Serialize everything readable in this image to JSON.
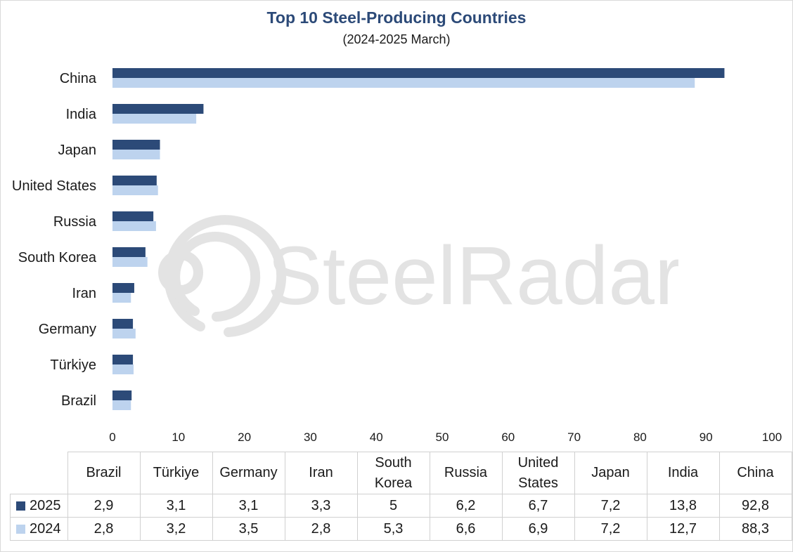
{
  "chart_data": {
    "type": "bar",
    "orientation": "horizontal",
    "title": "Top 10 Steel-Producing Countries",
    "subtitle": "(2024-2025 March)",
    "categories": [
      "China",
      "India",
      "Japan",
      "United States",
      "Russia",
      "South Korea",
      "Iran",
      "Germany",
      "Türkiye",
      "Brazil"
    ],
    "series": [
      {
        "name": "2025",
        "color": "#2c4a78",
        "values": [
          92.8,
          13.8,
          7.2,
          6.7,
          6.2,
          5,
          3.3,
          3.1,
          3.1,
          2.9
        ]
      },
      {
        "name": "2024",
        "color": "#bdd3ee",
        "values": [
          88.3,
          12.7,
          7.2,
          6.9,
          6.6,
          5.3,
          2.8,
          3.5,
          3.2,
          2.8
        ]
      }
    ],
    "xlim": [
      0,
      100
    ],
    "xticks": [
      "0",
      "10",
      "20",
      "30",
      "40",
      "50",
      "60",
      "70",
      "80",
      "90",
      "100"
    ],
    "grid": false,
    "data_table": {
      "columns": [
        "Brazil",
        "Türkiye",
        "Germany",
        "Iran",
        "South Korea",
        "Russia",
        "United States",
        "Japan",
        "India",
        "China"
      ],
      "rows": [
        {
          "label": "2025",
          "color": "#2c4a78",
          "cells": [
            "2,9",
            "3,1",
            "3,1",
            "3,3",
            "5",
            "6,2",
            "6,7",
            "7,2",
            "13,8",
            "92,8"
          ]
        },
        {
          "label": "2024",
          "color": "#bdd3ee",
          "cells": [
            "2,8",
            "3,2",
            "3,5",
            "2,8",
            "5,3",
            "6,6",
            "6,9",
            "7,2",
            "12,7",
            "88,3"
          ]
        }
      ]
    }
  },
  "watermark": {
    "text": "SteelRadar",
    "icon": "radar-logo-icon",
    "color": "#e3e3e3"
  }
}
